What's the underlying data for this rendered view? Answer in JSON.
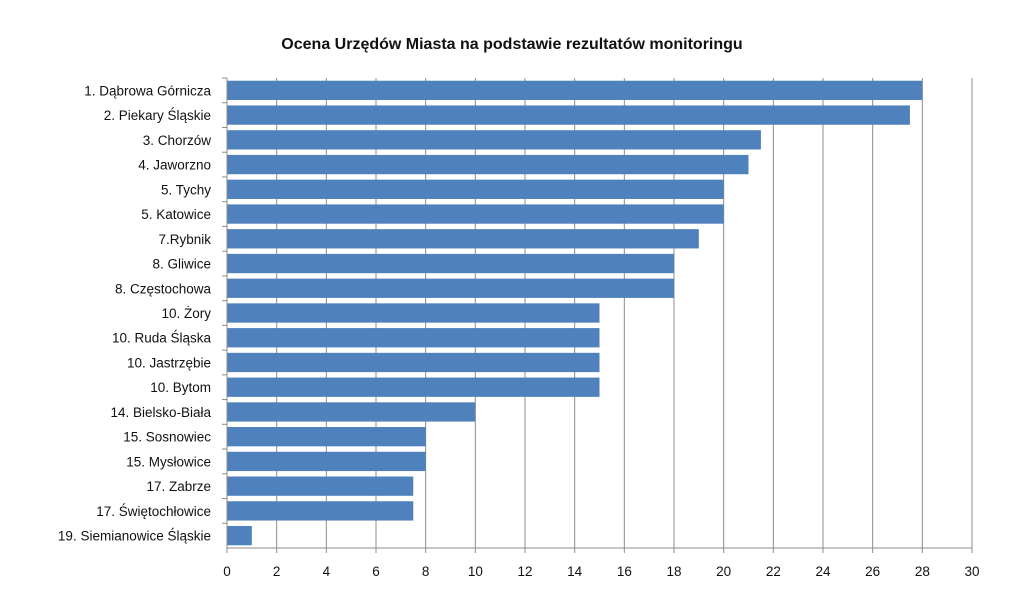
{
  "chart_data": {
    "type": "bar",
    "orientation": "horizontal",
    "title": "Ocena Urzędów Miasta na podstawie rezultatów monitoringu",
    "xlabel": "",
    "ylabel": "",
    "xlim": [
      0,
      30
    ],
    "x_ticks": [
      "0",
      "2",
      "4",
      "6",
      "8",
      "10",
      "12",
      "14",
      "16",
      "18",
      "20",
      "22",
      "24",
      "26",
      "28",
      "30"
    ],
    "grid": "vertical",
    "legend": "none",
    "bar_color": "#4f81bd",
    "categories": [
      "1. Dąbrowa Górnicza",
      "2. Piekary Śląskie",
      "3. Chorzów",
      "4. Jaworzno",
      "5. Tychy",
      "5. Katowice",
      "7.Rybnik",
      "8. Gliwice",
      "8. Częstochowa",
      "10. Żory",
      "10. Ruda Śląska",
      "10. Jastrzębie",
      "10. Bytom",
      "14. Bielsko-Biała",
      "15. Sosnowiec",
      "15. Mysłowice",
      "17. Zabrze",
      "17. Świętochłowice",
      "19. Siemianowice Śląskie"
    ],
    "values": [
      28,
      27.5,
      21.5,
      21,
      20,
      20,
      19,
      18,
      18,
      15,
      15,
      15,
      15,
      10,
      8,
      8,
      7.5,
      7.5,
      1
    ]
  }
}
